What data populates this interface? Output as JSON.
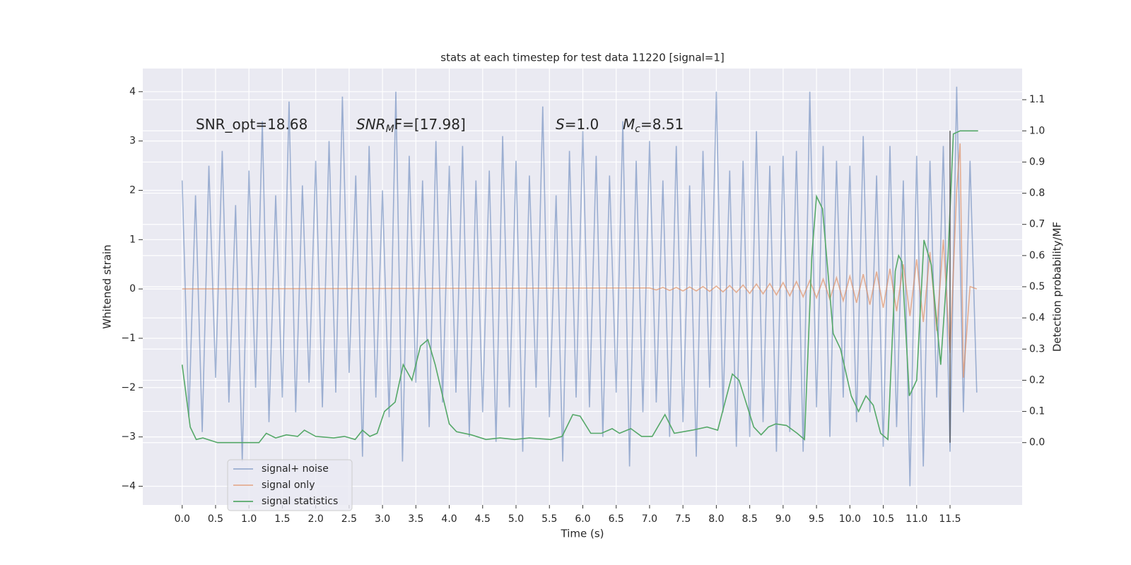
{
  "chart_data": {
    "type": "line",
    "title": "stats at each timestep for test data 11220 [signal=1]",
    "x_label": "Time (s)",
    "y_label": "Whitened strain",
    "y2_label": "Detection probability/MF",
    "annotations": [
      {
        "main": "SNR_opt=18.68"
      },
      {
        "main": "SNR",
        "sub": "M",
        "rest": "F=[17.98]"
      },
      {
        "main": "S",
        "rest": "=1.0"
      },
      {
        "main": "M",
        "sub": "c",
        "rest": "=8.51"
      }
    ],
    "grid": true,
    "legend": "lower left",
    "xlim": [
      -0.59,
      12.58
    ],
    "ylim": [
      -4.38,
      4.47
    ],
    "y2lim": [
      -0.2,
      1.2
    ],
    "xticks": [
      {
        "value": 0,
        "label": "0.0"
      },
      0.5,
      {
        "value": 1,
        "label": "1.0"
      },
      1.5,
      {
        "value": 2,
        "label": "2.0"
      },
      2.5,
      {
        "value": 3,
        "label": "3.0"
      },
      3.5,
      {
        "value": 4,
        "label": "4.0"
      },
      4.5,
      {
        "value": 5,
        "label": "5.0"
      },
      5.5,
      {
        "value": 6,
        "label": "6.0"
      },
      6.5,
      {
        "value": 7,
        "label": "7.0"
      },
      7.5,
      {
        "value": 8,
        "label": "8.0"
      },
      8.5,
      {
        "value": 9,
        "label": "9.0"
      },
      9.5,
      {
        "value": 10,
        "label": "10.0"
      },
      10.5,
      {
        "value": 11,
        "label": "11.0"
      },
      11.5
    ],
    "yticks": [
      {
        "value": -4,
        "label": "−4"
      },
      {
        "value": -3,
        "label": "−3"
      },
      {
        "value": -2,
        "label": "−2"
      },
      {
        "value": -1,
        "label": "−1"
      },
      0,
      1,
      2,
      3,
      4
    ],
    "y2ticks": [
      {
        "value": 0,
        "label": "0.0"
      },
      0.1,
      0.2,
      0.3,
      0.4,
      0.5,
      0.6,
      0.7,
      0.8,
      0.9,
      {
        "value": 1,
        "label": "1.0"
      },
      1.1
    ],
    "series": [
      {
        "name": "signal+ noise",
        "color": "#4c72b0",
        "opacity": 0.5,
        "x": [
          0.0,
          0.1,
          0.2,
          0.3,
          0.4,
          0.5,
          0.6,
          0.7,
          0.8,
          0.9,
          1.0,
          1.1,
          1.2,
          1.3,
          1.4,
          1.5,
          1.6,
          1.7,
          1.8,
          1.9,
          2.0,
          2.1,
          2.2,
          2.3,
          2.4,
          2.5,
          2.6,
          2.7,
          2.8,
          2.9,
          3.0,
          3.1,
          3.2,
          3.3,
          3.4,
          3.5,
          3.6,
          3.7,
          3.8,
          3.9,
          4.0,
          4.1,
          4.2,
          4.3,
          4.4,
          4.5,
          4.6,
          4.7,
          4.8,
          4.9,
          5.0,
          5.1,
          5.2,
          5.3,
          5.4,
          5.5,
          5.6,
          5.7,
          5.8,
          5.9,
          6.0,
          6.1,
          6.2,
          6.3,
          6.4,
          6.5,
          6.6,
          6.7,
          6.8,
          6.9,
          7.0,
          7.1,
          7.2,
          7.3,
          7.4,
          7.5,
          7.6,
          7.7,
          7.8,
          7.9,
          8.0,
          8.1,
          8.2,
          8.3,
          8.4,
          8.5,
          8.6,
          8.7,
          8.8,
          8.9,
          9.0,
          9.1,
          9.2,
          9.3,
          9.4,
          9.5,
          9.6,
          9.7,
          9.8,
          9.9,
          10.0,
          10.1,
          10.2,
          10.3,
          10.4,
          10.5,
          10.6,
          10.7,
          10.8,
          10.9,
          11.0,
          11.1,
          11.2,
          11.3,
          11.4,
          11.5,
          11.6,
          11.7,
          11.8,
          11.9
        ],
        "values": [
          2.2,
          -2.6,
          1.9,
          -2.9,
          2.5,
          -1.8,
          2.8,
          -2.3,
          1.7,
          -3.5,
          2.4,
          -2.0,
          3.4,
          -2.7,
          1.9,
          -2.2,
          3.8,
          -2.5,
          2.1,
          -1.9,
          2.6,
          -2.4,
          3.0,
          -2.1,
          3.9,
          -1.7,
          2.3,
          -3.4,
          2.9,
          -2.2,
          2.0,
          -2.6,
          4.0,
          -3.5,
          2.7,
          -1.9,
          2.2,
          -2.8,
          3.0,
          -2.3,
          2.5,
          -2.1,
          2.9,
          -3.0,
          2.2,
          -2.5,
          2.4,
          -3.1,
          3.1,
          -2.4,
          2.6,
          -3.3,
          2.3,
          -2.0,
          3.7,
          -2.6,
          1.9,
          -3.5,
          2.8,
          -2.2,
          3.2,
          -2.4,
          2.7,
          -3.0,
          2.3,
          -2.1,
          3.4,
          -3.6,
          2.6,
          -2.5,
          3.0,
          -2.3,
          2.2,
          -3.0,
          2.9,
          -2.7,
          2.1,
          -3.4,
          2.8,
          -2.0,
          4.0,
          -2.5,
          2.4,
          -3.2,
          2.6,
          -3.0,
          3.2,
          -2.7,
          2.5,
          -3.3,
          2.7,
          -2.9,
          2.8,
          -3.3,
          4.0,
          -2.4,
          2.9,
          -3.0,
          2.6,
          -2.2,
          2.5,
          -2.7,
          3.1,
          -2.5,
          2.3,
          -3.2,
          2.9,
          -2.8,
          2.2,
          -4.0,
          2.7,
          -3.6,
          2.6,
          -2.2,
          2.9,
          -3.3,
          4.1,
          -2.5,
          2.6,
          -2.1
        ]
      },
      {
        "name": "signal only",
        "color": "#dd8452",
        "opacity": 0.6,
        "x": [
          0.0,
          7.0,
          7.1,
          7.2,
          7.3,
          7.4,
          7.5,
          7.6,
          7.7,
          7.8,
          7.9,
          8.0,
          8.1,
          8.2,
          8.3,
          8.4,
          8.5,
          8.6,
          8.7,
          8.8,
          8.9,
          9.0,
          9.1,
          9.2,
          9.3,
          9.4,
          9.5,
          9.6,
          9.7,
          9.8,
          9.9,
          10.0,
          10.1,
          10.2,
          10.3,
          10.4,
          10.5,
          10.6,
          10.7,
          10.8,
          10.9,
          11.0,
          11.1,
          11.2,
          11.3,
          11.4,
          11.5,
          11.6,
          11.65,
          11.7,
          11.8,
          11.9
        ],
        "values": [
          0,
          0.02,
          -0.02,
          0.03,
          -0.03,
          0.03,
          -0.04,
          0.04,
          -0.04,
          0.05,
          -0.05,
          0.06,
          -0.06,
          0.07,
          -0.07,
          0.08,
          -0.09,
          0.1,
          -0.1,
          0.11,
          -0.12,
          0.13,
          -0.14,
          0.15,
          -0.16,
          0.17,
          -0.18,
          0.2,
          -0.21,
          0.23,
          -0.24,
          0.26,
          -0.28,
          0.3,
          -0.32,
          0.35,
          -0.38,
          0.41,
          -0.45,
          0.5,
          -0.55,
          0.6,
          -0.67,
          0.75,
          -0.85,
          1.0,
          -1.3,
          2.0,
          2.95,
          -1.8,
          0.05,
          0
        ]
      },
      {
        "name": "signal statistics",
        "color": "#55a868",
        "opacity": 1,
        "axis": "y2",
        "x": [
          0,
          0.12,
          0.21,
          0.31,
          0.53,
          0.97,
          1.15,
          1.26,
          1.4,
          1.56,
          1.73,
          1.83,
          2.0,
          2.27,
          2.43,
          2.59,
          2.7,
          2.81,
          2.92,
          3.03,
          3.19,
          3.31,
          3.44,
          3.57,
          3.68,
          3.79,
          3.9,
          4.0,
          4.11,
          4.33,
          4.55,
          4.76,
          4.98,
          5.2,
          5.52,
          5.69,
          5.85,
          5.96,
          6.12,
          6.28,
          6.44,
          6.55,
          6.72,
          6.88,
          7.04,
          7.23,
          7.37,
          7.64,
          7.86,
          8.02,
          8.24,
          8.34,
          8.56,
          8.67,
          8.78,
          8.89,
          9.05,
          9.21,
          9.32,
          9.43,
          9.5,
          9.59,
          9.75,
          9.86,
          10.02,
          10.13,
          10.24,
          10.35,
          10.46,
          10.57,
          10.68,
          10.73,
          10.78,
          10.89,
          11.0,
          11.11,
          11.22,
          11.36,
          11.47,
          11.55,
          11.65,
          11.92
        ],
        "values": [
          0.25,
          0.05,
          0.01,
          0.015,
          0.0,
          0.0,
          0.0,
          0.03,
          0.015,
          0.025,
          0.02,
          0.04,
          0.02,
          0.015,
          0.02,
          0.01,
          0.04,
          0.02,
          0.03,
          0.1,
          0.13,
          0.25,
          0.2,
          0.31,
          0.33,
          0.25,
          0.15,
          0.06,
          0.035,
          0.025,
          0.01,
          0.015,
          0.01,
          0.015,
          0.01,
          0.02,
          0.09,
          0.085,
          0.03,
          0.03,
          0.045,
          0.03,
          0.045,
          0.02,
          0.02,
          0.09,
          0.03,
          0.04,
          0.05,
          0.04,
          0.22,
          0.2,
          0.05,
          0.025,
          0.05,
          0.06,
          0.055,
          0.03,
          0.01,
          0.6,
          0.79,
          0.75,
          0.35,
          0.3,
          0.15,
          0.1,
          0.15,
          0.12,
          0.03,
          0.01,
          0.55,
          0.6,
          0.58,
          0.15,
          0.2,
          0.65,
          0.57,
          0.25,
          0.6,
          0.99,
          1.0,
          1.0
        ]
      }
    ],
    "vlines": [
      {
        "x": 11.5,
        "ymin": 0,
        "ymax": 1.0,
        "color": "#555555",
        "axis": "y2"
      }
    ]
  }
}
